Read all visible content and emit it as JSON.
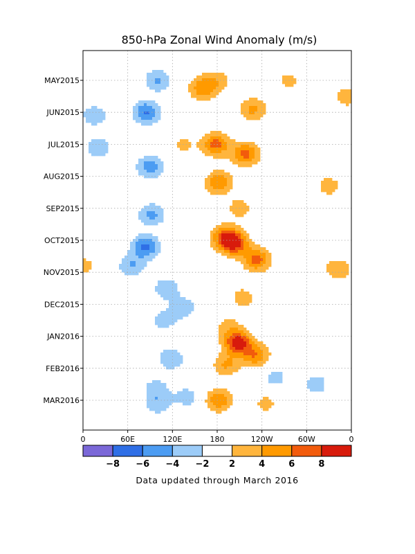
{
  "chart_data": {
    "type": "heatmap",
    "title": "850-hPa Zonal Wind Anomaly (m/s)",
    "footer": "Data updated through March 2016",
    "xlabel": "",
    "ylabel": "",
    "x_ticks": [
      {
        "label": "0",
        "lon": 0
      },
      {
        "label": "60E",
        "lon": 60
      },
      {
        "label": "120E",
        "lon": 120
      },
      {
        "label": "180",
        "lon": 180
      },
      {
        "label": "120W",
        "lon": 240
      },
      {
        "label": "60W",
        "lon": 300
      },
      {
        "label": "0",
        "lon": 360
      }
    ],
    "xlim": [
      0,
      360
    ],
    "y_ticks": [
      "MAY2015",
      "JUN2015",
      "JUL2015",
      "AUG2015",
      "SEP2015",
      "OCT2015",
      "NOV2015",
      "DEC2015",
      "JAN2016",
      "FEB2016",
      "MAR2016"
    ],
    "y_direction": "time increases downward",
    "grid": true,
    "colorbar": {
      "position": "bottom",
      "levels": [
        -10,
        -8,
        -6,
        -4,
        -2,
        2,
        4,
        6,
        8,
        10
      ],
      "labels": [
        "-8",
        "-6",
        "-4",
        "-2",
        "2",
        "4",
        "6",
        "8"
      ],
      "colors": [
        "#7B68D8",
        "#2F6FE6",
        "#4C9CF2",
        "#9CCCF8",
        "#FFFFFF",
        "#FFB53D",
        "#FF9A00",
        "#F25B0C",
        "#D81B0C"
      ]
    },
    "anomalies": [
      {
        "lon": 100,
        "time": 0.0,
        "value": -4.3
      },
      {
        "lon": 180,
        "time": 0.0,
        "value": 3.0
      },
      {
        "lon": 275,
        "time": 0.0,
        "value": 2.6
      },
      {
        "lon": 160,
        "time": 0.25,
        "value": 5.3
      },
      {
        "lon": 228,
        "time": 0.9,
        "value": 4.6
      },
      {
        "lon": 85,
        "time": 1.0,
        "value": -6.2
      },
      {
        "lon": 15,
        "time": 1.1,
        "value": -3.5
      },
      {
        "lon": 355,
        "time": 0.5,
        "value": 3.3
      },
      {
        "lon": 135,
        "time": 2.0,
        "value": 2.4
      },
      {
        "lon": 178,
        "time": 2.0,
        "value": 6.7
      },
      {
        "lon": 218,
        "time": 2.3,
        "value": 6.7
      },
      {
        "lon": 182,
        "time": 3.2,
        "value": 5.8
      },
      {
        "lon": 90,
        "time": 2.7,
        "value": -5.1
      },
      {
        "lon": 20,
        "time": 2.1,
        "value": -3.6
      },
      {
        "lon": 330,
        "time": 3.3,
        "value": 3.0
      },
      {
        "lon": 92,
        "time": 4.2,
        "value": -4.6
      },
      {
        "lon": 210,
        "time": 4.0,
        "value": 3.1
      },
      {
        "lon": 190,
        "time": 4.9,
        "value": 6.2
      },
      {
        "lon": 233,
        "time": 5.6,
        "value": 6.8
      },
      {
        "lon": 203,
        "time": 5.1,
        "value": 8.0
      },
      {
        "lon": 84,
        "time": 5.2,
        "value": -6.4
      },
      {
        "lon": 65,
        "time": 5.8,
        "value": -4.0
      },
      {
        "lon": 112,
        "time": 6.5,
        "value": -3.6
      },
      {
        "lon": 135,
        "time": 7.1,
        "value": -3.3
      },
      {
        "lon": 342,
        "time": 5.9,
        "value": 3.8
      },
      {
        "lon": 2,
        "time": 5.8,
        "value": 2.7
      },
      {
        "lon": 215,
        "time": 6.8,
        "value": 3.1
      },
      {
        "lon": 195,
        "time": 7.7,
        "value": 2.6
      },
      {
        "lon": 108,
        "time": 7.5,
        "value": -3.0
      },
      {
        "lon": 208,
        "time": 8.2,
        "value": 9.1
      },
      {
        "lon": 232,
        "time": 8.6,
        "value": 5.6
      },
      {
        "lon": 192,
        "time": 8.9,
        "value": 4.2
      },
      {
        "lon": 118,
        "time": 8.7,
        "value": -3.8
      },
      {
        "lon": 98,
        "time": 9.6,
        "value": -2.8
      },
      {
        "lon": 258,
        "time": 9.3,
        "value": -2.8
      },
      {
        "lon": 312,
        "time": 9.5,
        "value": -3.2
      },
      {
        "lon": 182,
        "time": 10.0,
        "value": 5.6
      },
      {
        "lon": 245,
        "time": 10.1,
        "value": 2.7
      },
      {
        "lon": 100,
        "time": 10.1,
        "value": -3.4
      },
      {
        "lon": 140,
        "time": 9.9,
        "value": -3.0
      }
    ]
  }
}
